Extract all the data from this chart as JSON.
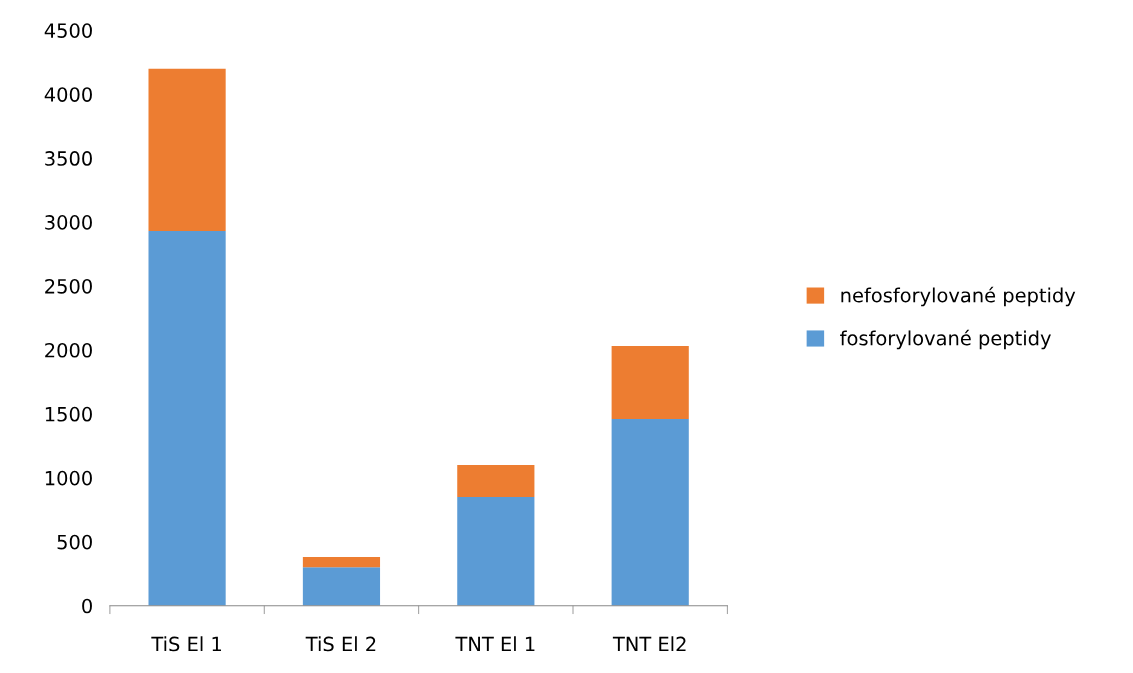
{
  "chart_data": {
    "type": "bar",
    "stacked": true,
    "categories": [
      "TiS El 1",
      "TiS El 2",
      "TNT El 1",
      "TNT El2"
    ],
    "series": [
      {
        "name": "fosforylované peptidy",
        "color": "#5b9bd5",
        "values": [
          2930,
          300,
          850,
          1460
        ]
      },
      {
        "name": "nefosforylované peptidy",
        "color": "#ed7d31",
        "values": [
          1270,
          80,
          250,
          570
        ]
      }
    ],
    "ylim": [
      0,
      4500
    ],
    "yticks": [
      0,
      500,
      1000,
      1500,
      2000,
      2500,
      3000,
      3500,
      4000,
      4500
    ],
    "grid": false,
    "legend": "right"
  }
}
